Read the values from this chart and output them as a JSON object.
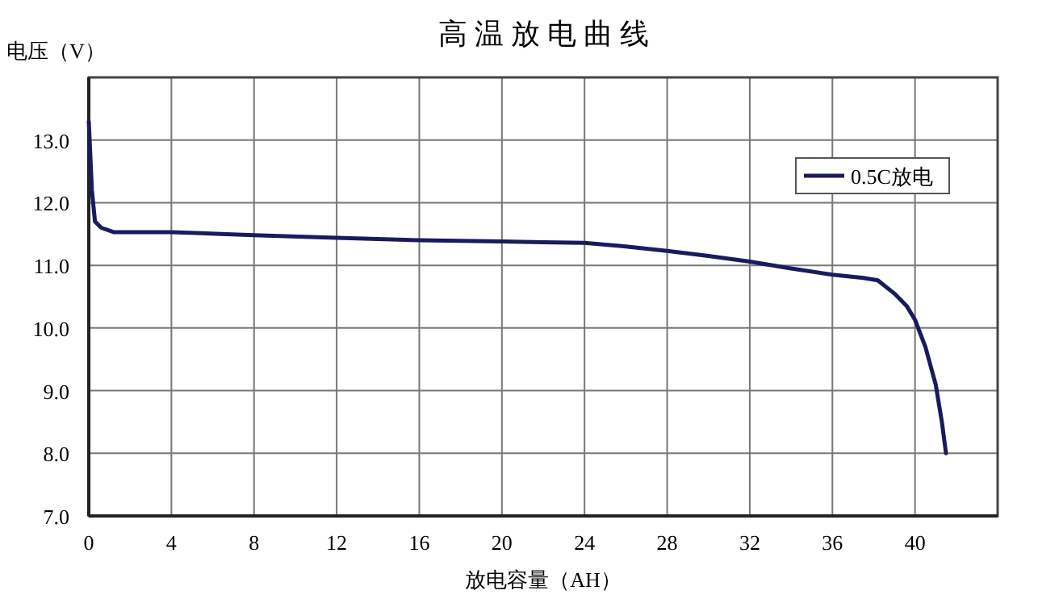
{
  "chart_data": {
    "type": "line",
    "title": "高 温 放 电 曲 线",
    "xlabel": "放电容量（AH）",
    "ylabel": "电压（V）",
    "xlim": [
      0,
      44
    ],
    "xticks": [
      0,
      4,
      8,
      12,
      16,
      20,
      24,
      28,
      32,
      36,
      40
    ],
    "ylim": [
      7,
      14
    ],
    "yticks": [
      {
        "value": 7,
        "label": "7.0"
      },
      {
        "value": 8,
        "label": "8.0"
      },
      {
        "value": 9,
        "label": "9.0"
      },
      {
        "value": 10,
        "label": "10.0"
      },
      {
        "value": 11,
        "label": "11.0"
      },
      {
        "value": 12,
        "label": "12.0"
      },
      {
        "value": 13,
        "label": "13.0"
      },
      {
        "value": 14,
        "label": null
      }
    ],
    "grid": true,
    "legend": "top right",
    "marker": "none",
    "line_style": "solid",
    "series": [
      {
        "name": "0.5C放电",
        "color": "#1a1a5e",
        "x": [
          0,
          0.15,
          0.3,
          0.6,
          1.2,
          4,
          8,
          12,
          16,
          20,
          22,
          24,
          26,
          28,
          30,
          32,
          34,
          36,
          37.5,
          38.2,
          39,
          39.6,
          40,
          40.5,
          41,
          41.3,
          41.5
        ],
        "values": [
          13.3,
          12.2,
          11.7,
          11.6,
          11.53,
          11.53,
          11.48,
          11.44,
          11.4,
          11.38,
          11.37,
          11.36,
          11.3,
          11.23,
          11.15,
          11.06,
          10.95,
          10.85,
          10.8,
          10.76,
          10.55,
          10.35,
          10.13,
          9.7,
          9.1,
          8.5,
          8.0
        ]
      }
    ]
  }
}
